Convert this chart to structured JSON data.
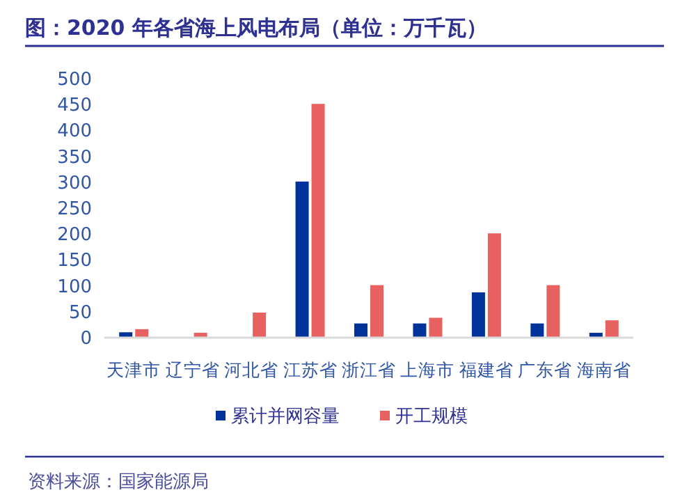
{
  "chart_data": {
    "type": "bar",
    "title": "图：2020 年各省海上风电布局（单位：万千瓦）",
    "categories": [
      "天津市",
      "辽宁省",
      "河北省",
      "江苏省",
      "浙江省",
      "上海市",
      "福建省",
      "广东省",
      "海南省"
    ],
    "series": [
      {
        "name": "累计并网容量",
        "color": "#003399",
        "values": [
          9,
          0,
          0,
          300,
          26,
          26,
          86,
          26,
          8
        ]
      },
      {
        "name": "开工规模",
        "color": "#e86161",
        "values": [
          15,
          8,
          47,
          450,
          100,
          37,
          200,
          100,
          32
        ]
      }
    ],
    "ylim": [
      0,
      500
    ],
    "yticks": [
      0,
      50,
      100,
      150,
      200,
      250,
      300,
      350,
      400,
      450,
      500
    ],
    "legend": "bottom",
    "annotations": [
      "资料来源：国家能源局"
    ]
  }
}
